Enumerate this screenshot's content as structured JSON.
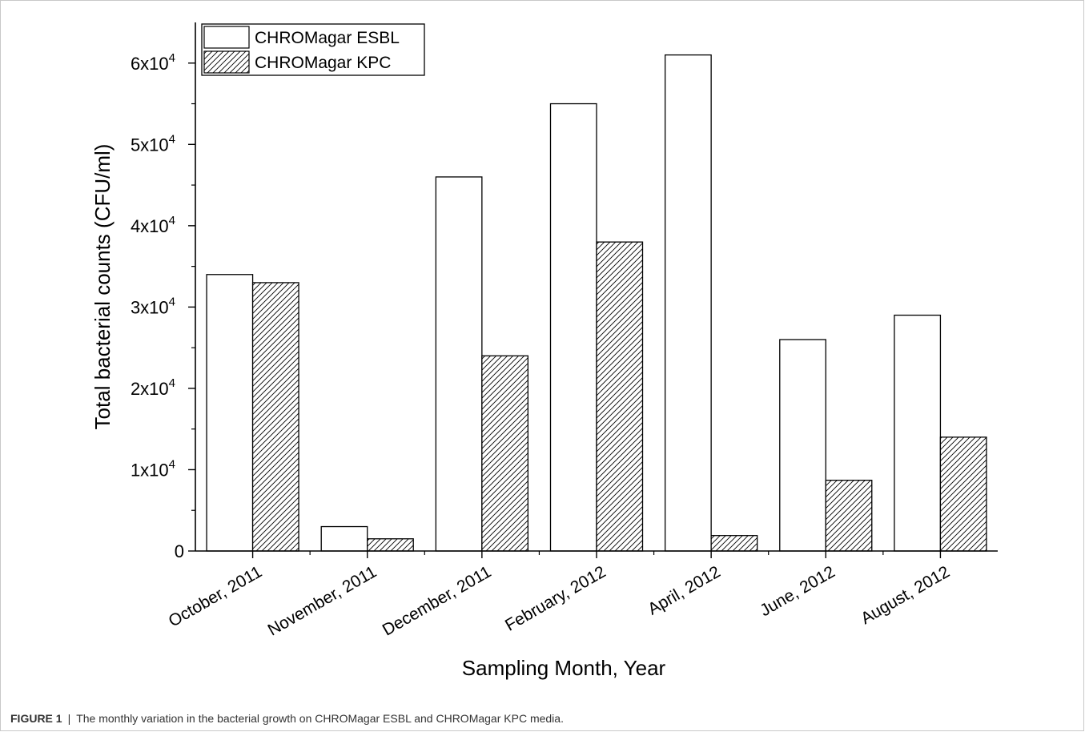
{
  "chart_data": {
    "type": "bar",
    "categories": [
      "October, 2011",
      "November, 2011",
      "December, 2011",
      "February, 2012",
      "April, 2012",
      "June, 2012",
      "August, 2012"
    ],
    "series": [
      {
        "name": "CHROMagar ESBL",
        "values": [
          34000,
          3000,
          46000,
          55000,
          61000,
          26000,
          29000
        ],
        "fill": "plain"
      },
      {
        "name": "CHROMagar KPC",
        "values": [
          33000,
          1500,
          24000,
          38000,
          1900,
          8700,
          14000
        ],
        "fill": "hatched"
      }
    ],
    "xlabel": "Sampling Month, Year",
    "ylabel": "Total bacterial counts (CFU/ml)",
    "ylim": [
      0,
      65000
    ],
    "yticks": [
      {
        "value": 0,
        "label": "0",
        "exp": ""
      },
      {
        "value": 10000,
        "label": "1x10",
        "exp": "4"
      },
      {
        "value": 20000,
        "label": "2x10",
        "exp": "4"
      },
      {
        "value": 30000,
        "label": "3x10",
        "exp": "4"
      },
      {
        "value": 40000,
        "label": "4x10",
        "exp": "4"
      },
      {
        "value": 50000,
        "label": "5x10",
        "exp": "4"
      },
      {
        "value": 60000,
        "label": "6x10",
        "exp": "4"
      }
    ],
    "legend_position": "top-left",
    "grid": false,
    "colors": {
      "bar_fill": "#ffffff",
      "bar_stroke": "#000000",
      "hatch": "#000000"
    }
  },
  "caption": {
    "label": "FIGURE 1",
    "separator": "|",
    "text": "The monthly variation in the bacterial growth on CHROMagar ESBL and CHROMagar KPC media."
  }
}
